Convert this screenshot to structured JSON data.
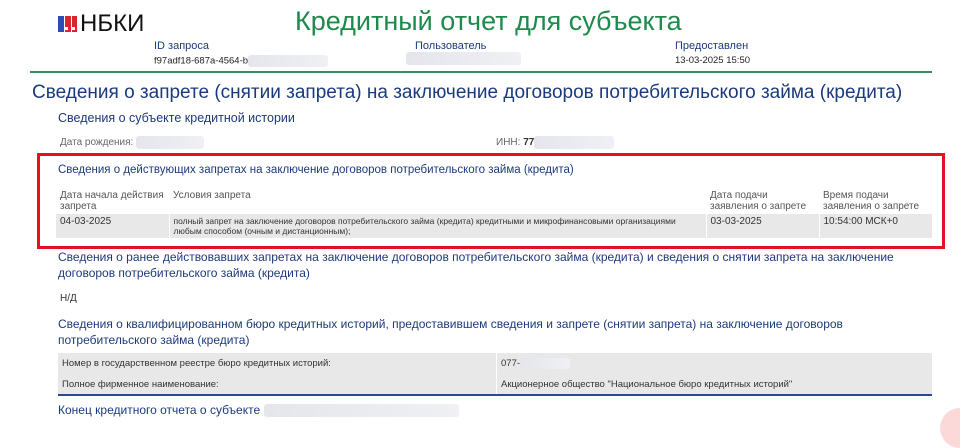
{
  "header": {
    "logo_text": "НБКИ",
    "title": "Кредитный отчет для субъекта",
    "request_id_label": "ID запроса",
    "request_id_value": "f97adf18-687a-4564-b",
    "user_label": "Пользователь",
    "provided_label": "Предоставлен",
    "provided_value": "13-03-2025 15:50"
  },
  "main_title": "Сведения о запрете (снятии запрета) на заключение договоров потребительского займа (кредита)",
  "subject": {
    "heading": "Сведения о субъекте кредитной истории",
    "dob_label": "Дата рождения:",
    "inn_label": "ИНН:",
    "inn_value": "77"
  },
  "active_bans": {
    "heading": "Сведения о действующих запретах на заключение договоров потребительского займа (кредита)",
    "columns": [
      "Дата начала действия запрета",
      "Условия запрета",
      "Дата подачи заявления о запрете",
      "Время подачи заявления о запрете"
    ],
    "rows": [
      [
        "04-03-2025",
        "полный запрет на заключение договоров потребительского займа (кредита) кредитными и микрофинансовыми организациями любым способом (очным и дистанционным);",
        "03-03-2025",
        "10:54:00 МСК+0"
      ]
    ],
    "highlight_color": "#e0141e"
  },
  "previous_bans": {
    "heading": "Сведения о ранее действовавших запретах на заключение договоров потребительского займа (кредита) и сведения о снятии запрета на заключение договоров потребительского займа (кредита)",
    "value": "Н/Д"
  },
  "bureau": {
    "heading": "Сведения о квалифицированном бюро кредитных историй, предоставившем сведения и запрете (снятии запрета) на заключение договоров потребительского займа (кредита)",
    "rows": [
      {
        "label": "Номер в государственном реестре бюро кредитных историй:",
        "value": "077-"
      },
      {
        "label": "Полное фирменное наименование:",
        "value": "Акционерное общество \"Национальное бюро кредитных историй\""
      }
    ]
  },
  "footer": {
    "end_label": "Конец кредитного отчета о субъекте"
  }
}
